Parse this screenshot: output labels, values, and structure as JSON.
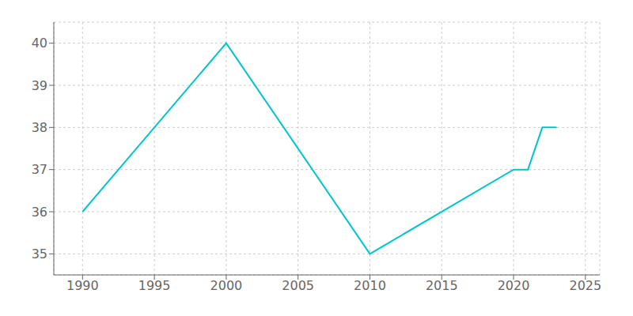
{
  "chart_data": {
    "type": "line",
    "x": [
      1990,
      2000,
      2010,
      2020,
      2021,
      2022,
      2023
    ],
    "values": [
      36,
      40,
      35,
      37,
      37,
      38,
      38
    ],
    "color": "#00C5CD",
    "xlim": [
      1988,
      2026
    ],
    "ylim": [
      34.5,
      40.5
    ],
    "xticks": [
      1990,
      1995,
      2000,
      2005,
      2010,
      2015,
      2020,
      2025
    ],
    "yticks": [
      35,
      36,
      37,
      38,
      39,
      40
    ],
    "grid": true
  }
}
